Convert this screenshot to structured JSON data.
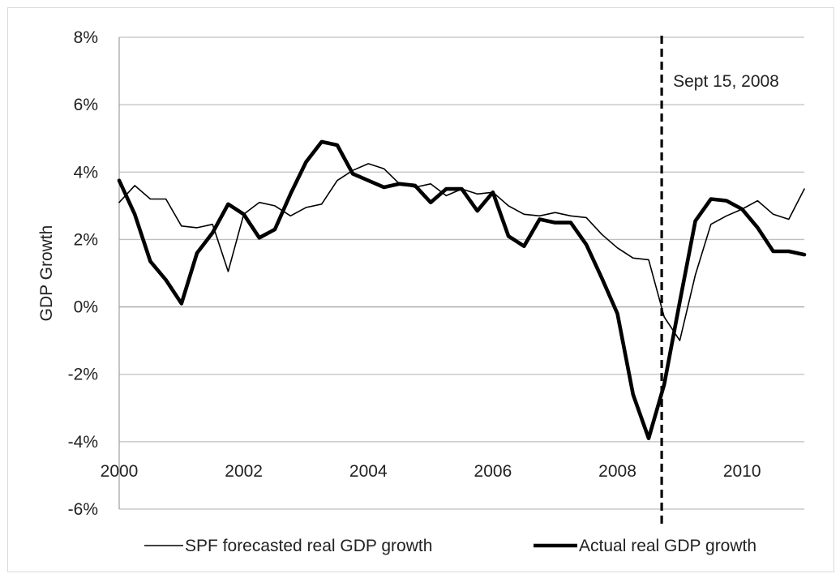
{
  "chart_data": {
    "type": "line",
    "ylabel": "GDP Growth",
    "ylim": [
      -6,
      8
    ],
    "yticks": [
      8,
      6,
      4,
      2,
      0,
      -2,
      -4,
      -6
    ],
    "ytick_labels": [
      "8%",
      "6%",
      "4%",
      "2%",
      "0%",
      "-2%",
      "-4%",
      "-6%"
    ],
    "xlim": [
      2000,
      2011
    ],
    "xticks": [
      2000,
      2002,
      2004,
      2006,
      2008,
      2010
    ],
    "xtick_labels": [
      "2000",
      "2002",
      "2004",
      "2006",
      "2008",
      "2010"
    ],
    "x_axis_at": 0,
    "grid": "horizontal",
    "legend_position": "bottom",
    "annotation": {
      "x": 2008.71,
      "text": "Sept 15, 2008",
      "style": "dashed-vertical-line"
    },
    "series": [
      {
        "name": "SPF forecasted real GDP growth",
        "style": "thin",
        "color": "#000000",
        "x": [
          2000.0,
          2000.25,
          2000.5,
          2000.75,
          2001.0,
          2001.25,
          2001.5,
          2001.75,
          2002.0,
          2002.25,
          2002.5,
          2002.75,
          2003.0,
          2003.25,
          2003.5,
          2003.75,
          2004.0,
          2004.25,
          2004.5,
          2004.75,
          2005.0,
          2005.25,
          2005.5,
          2005.75,
          2006.0,
          2006.25,
          2006.5,
          2006.75,
          2007.0,
          2007.25,
          2007.5,
          2007.75,
          2008.0,
          2008.25,
          2008.5,
          2008.75,
          2009.0,
          2009.25,
          2009.5,
          2009.75,
          2010.0,
          2010.25,
          2010.5,
          2010.75,
          2011.0
        ],
        "values": [
          3.1,
          3.6,
          3.2,
          3.2,
          2.4,
          2.35,
          2.45,
          1.05,
          2.75,
          3.1,
          3.0,
          2.7,
          2.95,
          3.05,
          3.75,
          4.05,
          4.25,
          4.1,
          3.65,
          3.55,
          3.65,
          3.3,
          3.5,
          3.35,
          3.4,
          3.0,
          2.75,
          2.7,
          2.8,
          2.7,
          2.65,
          2.15,
          1.75,
          1.45,
          1.4,
          -0.3,
          -1.0,
          0.95,
          2.45,
          2.7,
          2.9,
          3.15,
          2.75,
          2.6,
          3.5
        ]
      },
      {
        "name": "Actual real GDP growth",
        "style": "thick",
        "color": "#000000",
        "x": [
          2000.0,
          2000.25,
          2000.5,
          2000.75,
          2001.0,
          2001.25,
          2001.5,
          2001.75,
          2002.0,
          2002.25,
          2002.5,
          2002.75,
          2003.0,
          2003.25,
          2003.5,
          2003.75,
          2004.0,
          2004.25,
          2004.5,
          2004.75,
          2005.0,
          2005.25,
          2005.5,
          2005.75,
          2006.0,
          2006.25,
          2006.5,
          2006.75,
          2007.0,
          2007.25,
          2007.5,
          2007.75,
          2008.0,
          2008.25,
          2008.5,
          2008.75,
          2009.0,
          2009.25,
          2009.5,
          2009.75,
          2010.0,
          2010.25,
          2010.5,
          2010.75,
          2011.0
        ],
        "values": [
          3.75,
          2.75,
          1.35,
          0.8,
          0.1,
          1.6,
          2.2,
          3.05,
          2.75,
          2.05,
          2.3,
          3.35,
          4.3,
          4.9,
          4.8,
          3.95,
          3.75,
          3.55,
          3.65,
          3.6,
          3.1,
          3.5,
          3.5,
          2.85,
          3.4,
          2.1,
          1.8,
          2.6,
          2.5,
          2.5,
          1.85,
          0.85,
          -0.2,
          -2.6,
          -3.9,
          -2.3,
          0.15,
          2.55,
          3.2,
          3.15,
          2.9,
          2.35,
          1.65,
          1.65,
          1.55
        ]
      }
    ]
  }
}
